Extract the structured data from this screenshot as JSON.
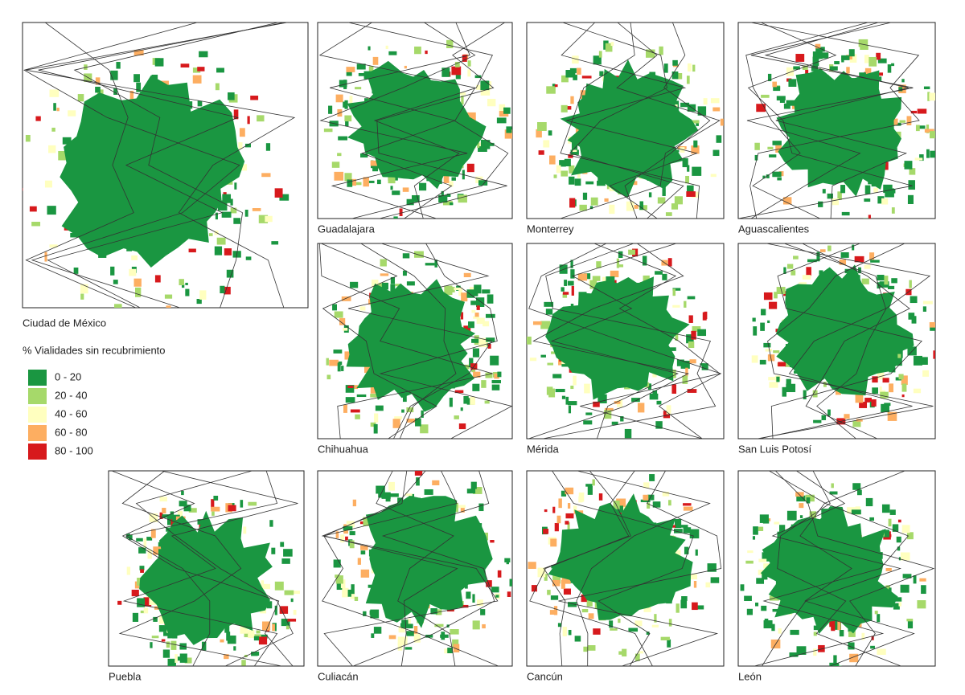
{
  "panels": [
    {
      "name": "Ciudad de México"
    },
    {
      "name": "Guadalajara"
    },
    {
      "name": "Monterrey"
    },
    {
      "name": "Aguascalientes"
    },
    {
      "name": "Chihuahua"
    },
    {
      "name": "Mérida"
    },
    {
      "name": "San Luis Potosí"
    },
    {
      "name": "Puebla"
    },
    {
      "name": "Culiacán"
    },
    {
      "name": "Cancún"
    },
    {
      "name": "León"
    }
  ],
  "legend": {
    "title": "% Vialidades sin recubrimiento",
    "items": [
      {
        "label": "0 - 20",
        "color": "#1a9641"
      },
      {
        "label": "20 - 40",
        "color": "#a6d96a"
      },
      {
        "label": "40 - 60",
        "color": "#ffffbf"
      },
      {
        "label": "60 - 80",
        "color": "#fdae61"
      },
      {
        "label": "80 - 100",
        "color": "#d7191c"
      }
    ]
  }
}
